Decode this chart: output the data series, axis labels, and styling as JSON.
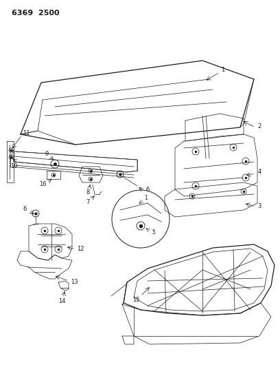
{
  "title": "6369  2500",
  "bg_color": "#ffffff",
  "line_color": "#1a1a1a",
  "figsize": [
    4.08,
    5.33
  ],
  "dpi": 100
}
